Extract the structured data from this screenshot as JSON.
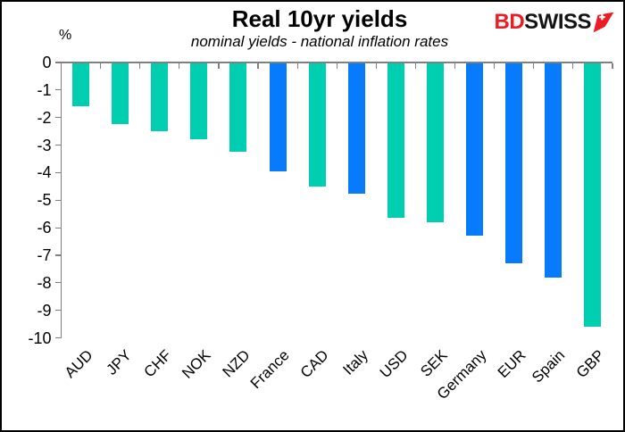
{
  "header": {
    "title": "Real 10yr yields",
    "subtitle": "nominal yields - national inflation rates"
  },
  "logo": {
    "part1": "BD",
    "part2": "SWISS",
    "icon": "swiss-arrow-icon",
    "part1_color": "#ED1C24",
    "part2_color": "#141414",
    "icon_color": "#ED1C24"
  },
  "chart_data": {
    "type": "bar",
    "title": "Real 10yr yields",
    "subtitle": "nominal yields - national inflation rates",
    "unit_label": "%",
    "categories": [
      "AUD",
      "JPY",
      "CHF",
      "NOK",
      "NZD",
      "France",
      "CAD",
      "Italy",
      "USD",
      "SEK",
      "Germany",
      "EUR",
      "Spain",
      "GBP"
    ],
    "values": [
      -1.6,
      -2.25,
      -2.5,
      -2.8,
      -3.25,
      -3.95,
      -4.5,
      -4.75,
      -5.65,
      -5.8,
      -6.3,
      -7.3,
      -7.8,
      -9.6
    ],
    "bar_color_keys": [
      "teal",
      "teal",
      "teal",
      "teal",
      "teal",
      "blue",
      "teal",
      "blue",
      "teal",
      "teal",
      "blue",
      "blue",
      "blue",
      "teal"
    ],
    "colors": {
      "teal": "#00CEB1",
      "blue": "#077BFB",
      "axis": "#808080"
    },
    "ylim": [
      -10,
      0
    ],
    "yticks": [
      0,
      -1,
      -2,
      -3,
      -4,
      -5,
      -6,
      -7,
      -8,
      -9,
      -10
    ],
    "xlabel": "",
    "ylabel": "%",
    "grid": false,
    "legend": null
  }
}
